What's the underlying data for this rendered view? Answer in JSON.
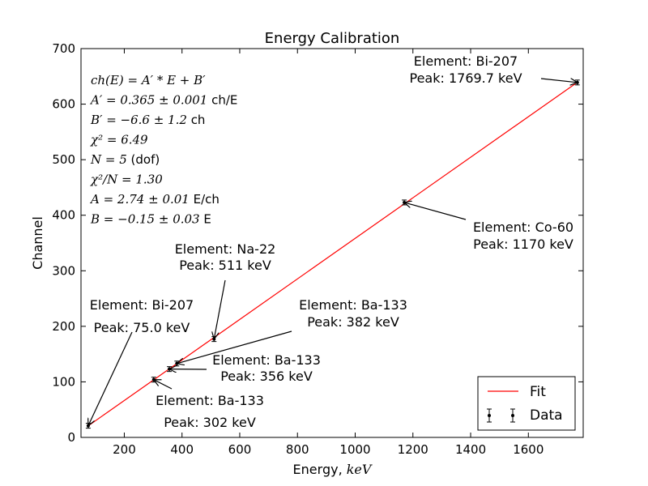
{
  "chart_data": {
    "type": "scatter",
    "title": "Energy Calibration",
    "xlabel": "Energy, ",
    "xlabel_unit": "keV",
    "ylabel": "Channel",
    "xlim": [
      50,
      1790
    ],
    "ylim": [
      0,
      700
    ],
    "xticks": [
      "200",
      "400",
      "600",
      "800",
      "1000",
      "1200",
      "1400",
      "1600"
    ],
    "xtick_values": [
      200,
      400,
      600,
      800,
      1000,
      1200,
      1400,
      1600
    ],
    "yticks": [
      "0",
      "100",
      "200",
      "300",
      "400",
      "500",
      "600",
      "700"
    ],
    "ytick_values": [
      0,
      100,
      200,
      300,
      400,
      500,
      600,
      700
    ],
    "grid": false,
    "legend_position": "bottom-right",
    "series": [
      {
        "name": "Fit",
        "kind": "line",
        "color": "#ff0000",
        "x": [
          75.0,
          1769.7
        ],
        "y": [
          20.8,
          639.3
        ]
      },
      {
        "name": "Data",
        "kind": "errorbar",
        "color": "#000000",
        "x": [
          75.0,
          302,
          356,
          382,
          511,
          1170,
          1769.7
        ],
        "y": [
          21,
          104,
          123,
          133,
          177,
          423,
          639
        ]
      }
    ],
    "fit_text": [
      {
        "math": "ch(E) = A′ * E + B′",
        "unit": ""
      },
      {
        "math": "A′ = 0.365 ± 0.001",
        "unit": " ch/E"
      },
      {
        "math": "B′ = −6.6 ± 1.2",
        "unit": " ch"
      },
      {
        "math": "χ² = 6.49",
        "unit": ""
      },
      {
        "math": "N = 5",
        "unit": " (dof)"
      },
      {
        "math": "χ²/N = 1.30",
        "unit": ""
      },
      {
        "math": "A = 2.74 ± 0.01",
        "unit": " E/ch"
      },
      {
        "math": "B = −0.15 ± 0.03",
        "unit": " E"
      }
    ],
    "annotations": [
      {
        "line1": "Element: Bi-207",
        "line2": " Peak: 75.0 keV",
        "point_x": 75.0,
        "point_y": 21
      },
      {
        "line1": "Element: Ba-133",
        "line2": " Peak: 302 keV",
        "point_x": 302,
        "point_y": 104
      },
      {
        "line1": "Element: Ba-133",
        "line2": " Peak: 356 keV",
        "point_x": 356,
        "point_y": 123
      },
      {
        "line1": "Element: Ba-133",
        "line2": " Peak: 382 keV",
        "point_x": 382,
        "point_y": 133
      },
      {
        "line1": "Element: Na-22",
        "line2": " Peak: 511 keV",
        "point_x": 511,
        "point_y": 177
      },
      {
        "line1": "Element: Co-60",
        "line2": " Peak: 1170 keV",
        "point_x": 1170,
        "point_y": 423
      },
      {
        "line1": "Element: Bi-207",
        "line2": " Peak: 1769.7 keV",
        "point_x": 1769.7,
        "point_y": 639
      }
    ]
  }
}
